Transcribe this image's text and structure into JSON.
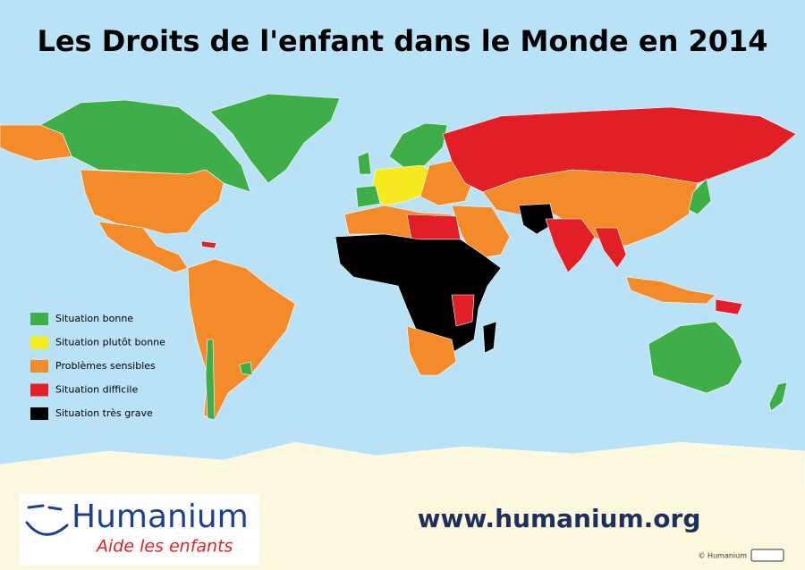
{
  "title": "Les Droits de l'enfant dans le Monde en 2014",
  "legend": [
    {
      "label": "Situation bonne",
      "color": "#3fae49"
    },
    {
      "label": "Situation plutôt bonne",
      "color": "#f5ea1e"
    },
    {
      "label": "Problèmes sensibles",
      "color": "#f38b2a"
    },
    {
      "label": "Situation difficile",
      "color": "#e21f26"
    },
    {
      "label": "Situation très grave",
      "color": "#000000"
    }
  ],
  "logo": {
    "name": "Humanium",
    "tagline": "Aide les enfants"
  },
  "url": "www.humanium.org",
  "copyright": "© Humanium"
}
